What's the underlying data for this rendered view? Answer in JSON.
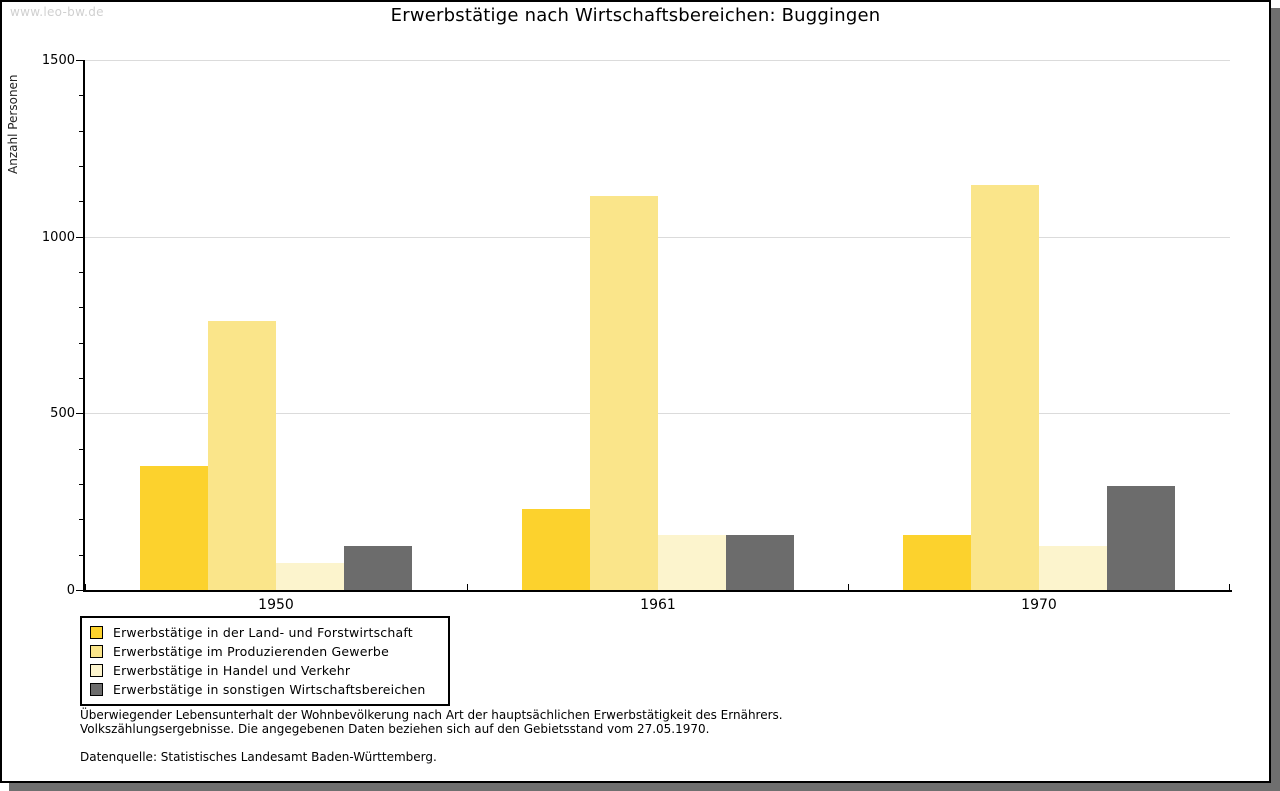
{
  "watermark": "www.leo-bw.de",
  "title": "Erwerbstätige nach Wirtschaftsbereichen: Buggingen",
  "chart_data": {
    "type": "bar",
    "title": "Erwerbstätige nach Wirtschaftsbereichen: Buggingen",
    "xlabel": "",
    "ylabel": "Anzahl Personen",
    "categories": [
      "1950",
      "1961",
      "1970"
    ],
    "series": [
      {
        "name": "Erwerbstätige in der Land- und Forstwirtschaft",
        "color": "#FCD22D",
        "values": [
          350,
          230,
          155
        ]
      },
      {
        "name": "Erwerbstätige im Produzierenden Gewerbe",
        "color": "#FAE58A",
        "values": [
          760,
          1115,
          1145
        ]
      },
      {
        "name": "Erwerbstätige in Handel und Verkehr",
        "color": "#FCF4CD",
        "values": [
          75,
          155,
          125
        ]
      },
      {
        "name": "Erwerbstätige in sonstigen Wirtschaftsbereichen",
        "color": "#6C6C6C",
        "values": [
          125,
          155,
          295
        ]
      }
    ],
    "ylim": [
      0,
      1500
    ],
    "yticks": [
      0,
      500,
      1000,
      1500
    ],
    "minor_tick_step": 100,
    "grid": true,
    "legend_position": "bottom-left"
  },
  "colors": {
    "grid": "#DBDBDB",
    "axis": "#000000",
    "watermark": "#D0D0D0",
    "shadow": "#6F6F6F"
  },
  "footnotes": {
    "line1": "Überwiegender Lebensunterhalt der Wohnbevölkerung nach Art der hauptsächlichen Erwerbstätigkeit des Ernährers.",
    "line2": "Volkszählungsergebnisse. Die angegebenen Daten beziehen sich auf den Gebietsstand vom 27.05.1970.",
    "source": "Datenquelle: Statistisches Landesamt Baden-Württemberg."
  }
}
